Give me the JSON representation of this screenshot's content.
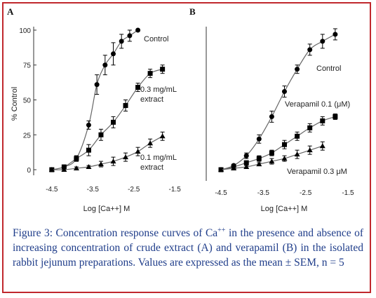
{
  "caption": {
    "prefix": "Figure 3: Concentration response curves of Ca",
    "superscript": "++",
    "rest": " in the presence and absence of increasing concentration of crude extract (A) and verapamil (B) in the isolated rabbit jejunum preparations. Values are expressed as the mean ± SEM, n = 5"
  },
  "colors": {
    "frame": "#c0282d",
    "caption": "#1f3d8a",
    "data": "#000000",
    "curve": "#666666"
  },
  "chart_data": [
    {
      "type": "line",
      "panel": "A",
      "xlabel": "Log [Ca++] M",
      "ylabel": "% Control",
      "xlim": [
        -4.6,
        -1.4
      ],
      "ylim": [
        -3,
        103
      ],
      "xticks": [
        "-4.5",
        "-3.5",
        "-2.5",
        "-1.5"
      ],
      "xtick_values": [
        -4.5,
        -3.5,
        -2.5,
        -1.5
      ],
      "yticks": [
        "0",
        "25",
        "50",
        "75",
        "100"
      ],
      "ytick_values": [
        0,
        25,
        50,
        75,
        100
      ],
      "series": [
        {
          "name": "Control",
          "marker": "circle",
          "x": [
            -4.5,
            -4.2,
            -3.9,
            -3.6,
            -3.4,
            -3.2,
            -3.0,
            -2.8,
            -2.6,
            -2.4,
            -2.2,
            -2.0,
            -1.8
          ],
          "y": [
            0,
            2,
            8,
            32,
            61,
            75,
            83,
            92,
            96,
            100,
            null,
            null,
            null
          ],
          "err": [
            0,
            1,
            2,
            3,
            7,
            7,
            8,
            5,
            4,
            0,
            null,
            null,
            null
          ]
        },
        {
          "name": "0.3 mg/mL extract",
          "marker": "square",
          "x": [
            -4.5,
            -4.2,
            -3.9,
            -3.6,
            -3.3,
            -3.0,
            -2.7,
            -2.4,
            -2.1,
            -1.8
          ],
          "y": [
            0,
            2,
            8,
            14,
            25,
            34,
            46,
            59,
            69,
            72
          ],
          "err": [
            0,
            1,
            2,
            4,
            4,
            4,
            4,
            3,
            3,
            3
          ]
        },
        {
          "name": "0.1 mg/mL extract",
          "marker": "triangle",
          "x": [
            -4.5,
            -4.2,
            -3.9,
            -3.6,
            -3.3,
            -3.0,
            -2.7,
            -2.4,
            -2.1,
            -1.8
          ],
          "y": [
            0,
            0,
            1,
            2,
            4,
            6,
            9,
            13,
            19,
            24
          ],
          "err": [
            0,
            0,
            1,
            1,
            2,
            3,
            3,
            3,
            3,
            3
          ]
        }
      ]
    },
    {
      "type": "line",
      "panel": "B",
      "xlabel": "Log [Ca++] M",
      "ylabel": "",
      "xlim": [
        -4.6,
        -1.4
      ],
      "ylim": [
        -3,
        103
      ],
      "xticks": [
        "-4.5",
        "-3.5",
        "-2.5",
        "-1.5"
      ],
      "xtick_values": [
        -4.5,
        -3.5,
        -2.5,
        -1.5
      ],
      "series": [
        {
          "name": "Control",
          "marker": "circle",
          "x": [
            -4.5,
            -4.2,
            -3.9,
            -3.6,
            -3.3,
            -3.0,
            -2.7,
            -2.4,
            -2.1,
            -1.8
          ],
          "y": [
            0,
            3,
            10,
            22,
            38,
            56,
            72,
            86,
            92,
            97
          ],
          "err": [
            0,
            1,
            2,
            3,
            4,
            4,
            3,
            4,
            5,
            4
          ]
        },
        {
          "name": "Verapamil 0.1 (μM)",
          "marker": "square",
          "x": [
            -4.5,
            -4.2,
            -3.9,
            -3.6,
            -3.3,
            -3.0,
            -2.7,
            -2.4,
            -2.1,
            -1.8
          ],
          "y": [
            0,
            2,
            5,
            8,
            12,
            18,
            24,
            30,
            35,
            38
          ],
          "err": [
            0,
            1,
            1,
            2,
            2,
            3,
            3,
            3,
            3,
            2
          ]
        },
        {
          "name": "Verapamil 0.3 μM",
          "marker": "triangle",
          "x": [
            -4.5,
            -4.2,
            -3.9,
            -3.6,
            -3.3,
            -3.0,
            -2.7,
            -2.4,
            -2.1
          ],
          "y": [
            0,
            1,
            2,
            4,
            6,
            8,
            11,
            14,
            17
          ],
          "err": [
            0,
            1,
            1,
            1,
            2,
            2,
            3,
            3,
            3
          ]
        }
      ]
    }
  ]
}
